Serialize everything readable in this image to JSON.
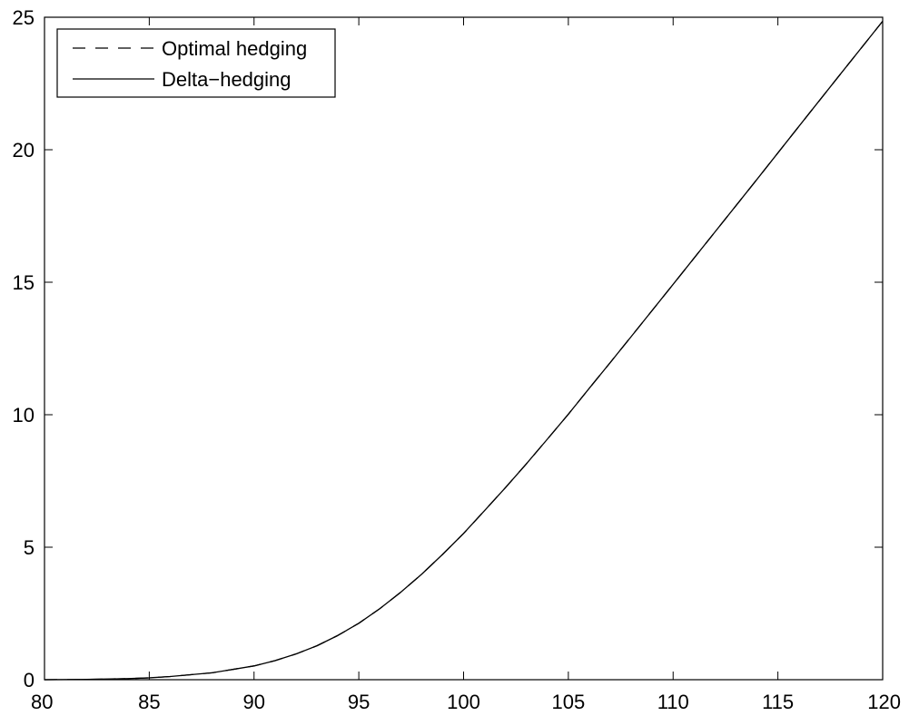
{
  "chart_data": {
    "type": "line",
    "title": "",
    "xlabel": "",
    "ylabel": "",
    "xlim": [
      80,
      120
    ],
    "ylim": [
      0,
      25
    ],
    "x_ticks": [
      80,
      85,
      90,
      95,
      100,
      105,
      110,
      115,
      120
    ],
    "y_ticks": [
      0,
      5,
      10,
      15,
      20,
      25
    ],
    "grid": false,
    "legend_position": "top-left",
    "x": [
      80,
      82,
      84,
      85,
      86,
      88,
      90,
      91,
      92,
      93,
      94,
      95,
      96,
      97,
      98,
      99,
      100,
      101,
      102,
      103,
      104,
      105,
      106,
      107,
      108,
      110,
      112,
      114,
      116,
      118,
      120
    ],
    "series": [
      {
        "name": "Optimal hedging",
        "style": "dashed",
        "color": "#000000",
        "values": [
          0.0,
          0.01,
          0.04,
          0.07,
          0.12,
          0.26,
          0.52,
          0.72,
          0.97,
          1.28,
          1.67,
          2.13,
          2.68,
          3.3,
          3.98,
          4.73,
          5.52,
          6.38,
          7.25,
          8.15,
          9.08,
          10.02,
          11.0,
          11.97,
          12.95,
          14.92,
          16.9,
          18.88,
          20.88,
          22.87,
          24.85
        ]
      },
      {
        "name": "Delta−hedging",
        "style": "solid",
        "color": "#000000",
        "values": [
          0.0,
          0.01,
          0.04,
          0.07,
          0.12,
          0.26,
          0.52,
          0.72,
          0.97,
          1.28,
          1.67,
          2.13,
          2.68,
          3.3,
          3.98,
          4.73,
          5.52,
          6.38,
          7.25,
          8.15,
          9.08,
          10.02,
          11.0,
          11.97,
          12.95,
          14.92,
          16.9,
          18.88,
          20.88,
          22.87,
          24.85
        ]
      }
    ]
  }
}
